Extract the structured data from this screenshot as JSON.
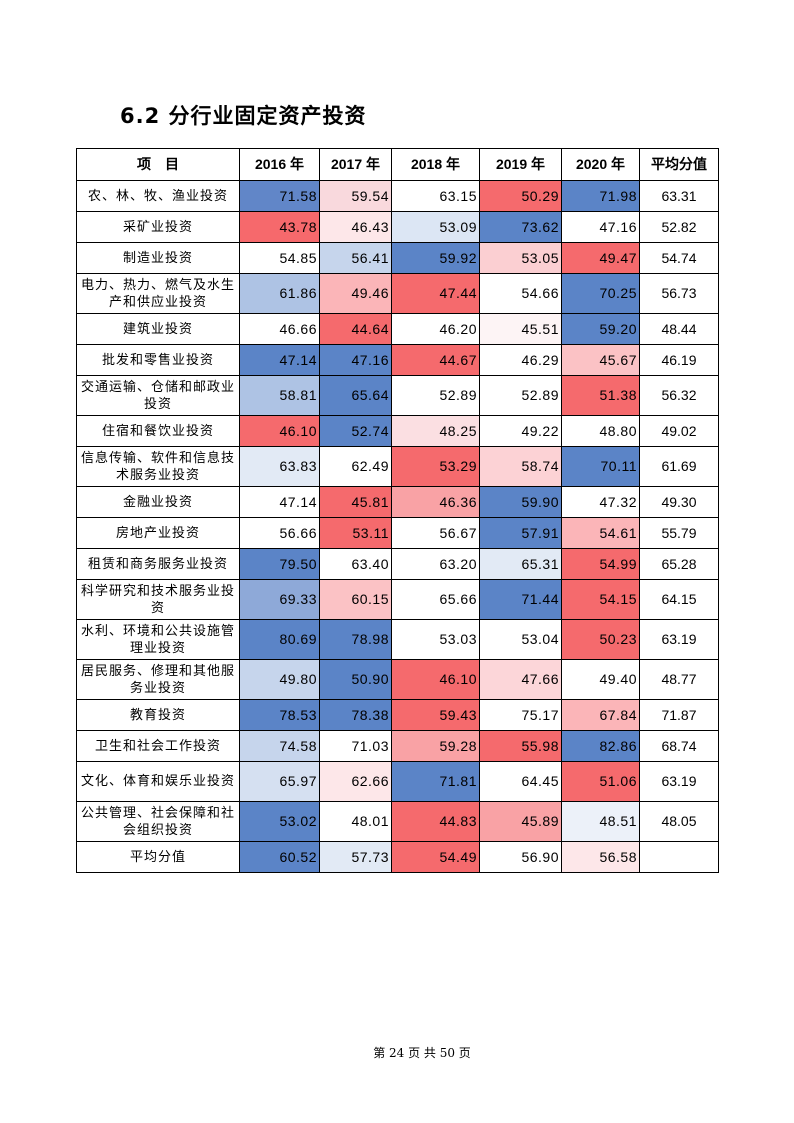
{
  "section_title": "6.2 分行业固定资产投资",
  "table": {
    "headers": [
      "项　目",
      "2016 年",
      "2017 年",
      "2018 年",
      "2019 年",
      "2020 年",
      "平均分值"
    ],
    "rows": [
      {
        "name": "农、林、牧、渔业投资",
        "values": [
          "71.58",
          "59.54",
          "63.15",
          "50.29",
          "71.98"
        ],
        "colors": [
          "#6186c8",
          "#f9d9dd",
          "#ffffff",
          "#f56a6d",
          "#5b84c7"
        ],
        "avg": "63.31"
      },
      {
        "name": "采矿业投资",
        "values": [
          "43.78",
          "46.43",
          "53.09",
          "73.62",
          "47.16"
        ],
        "colors": [
          "#f6696c",
          "#fde7e9",
          "#dce6f4",
          "#5b84c7",
          "#ffffff"
        ],
        "avg": "52.82"
      },
      {
        "name": "制造业投资",
        "values": [
          "54.85",
          "56.41",
          "59.92",
          "53.05",
          "49.47"
        ],
        "colors": [
          "#ffffff",
          "#c6d5ec",
          "#5b84c7",
          "#fbcfd2",
          "#f56a6d"
        ],
        "avg": "54.74"
      },
      {
        "name": "电力、热力、燃气及水生产和供应业投资",
        "values": [
          "61.86",
          "49.46",
          "47.44",
          "54.66",
          "70.25"
        ],
        "colors": [
          "#aec3e4",
          "#fbb5b8",
          "#f56a6d",
          "#ffffff",
          "#5b84c7"
        ],
        "avg": "56.73"
      },
      {
        "name": "建筑业投资",
        "values": [
          "46.66",
          "44.64",
          "46.20",
          "45.51",
          "59.20"
        ],
        "colors": [
          "#ffffff",
          "#f56a6d",
          "#ffffff",
          "#fdf4f5",
          "#5b84c7"
        ],
        "avg": "48.44"
      },
      {
        "name": "批发和零售业投资",
        "values": [
          "47.14",
          "47.16",
          "44.67",
          "46.29",
          "45.67"
        ],
        "colors": [
          "#5b84c7",
          "#5b84c7",
          "#f56a6d",
          "#ffffff",
          "#fbc2c5"
        ],
        "avg": "46.19"
      },
      {
        "name": "交通运输、仓储和邮政业投资",
        "values": [
          "58.81",
          "65.64",
          "52.89",
          "52.89",
          "51.38"
        ],
        "colors": [
          "#aec3e4",
          "#5b84c7",
          "#ffffff",
          "#ffffff",
          "#f56a6d"
        ],
        "avg": "56.32"
      },
      {
        "name": "住宿和餐饮业投资",
        "values": [
          "46.10",
          "52.74",
          "48.25",
          "49.22",
          "48.80"
        ],
        "colors": [
          "#f56a6d",
          "#5b84c7",
          "#fbdfe2",
          "#ffffff",
          "#ffffff"
        ],
        "avg": "49.02"
      },
      {
        "name": "信息传输、软件和信息技术服务业投资",
        "values": [
          "63.83",
          "62.49",
          "53.29",
          "58.74",
          "70.11"
        ],
        "colors": [
          "#e2eaf5",
          "#ffffff",
          "#f56a6d",
          "#fcd2d5",
          "#5b84c7"
        ],
        "avg": "61.69"
      },
      {
        "name": "金融业投资",
        "values": [
          "47.14",
          "45.81",
          "46.36",
          "59.90",
          "47.32"
        ],
        "colors": [
          "#ffffff",
          "#f56a6d",
          "#f9a2a5",
          "#5b84c7",
          "#ffffff"
        ],
        "avg": "49.30"
      },
      {
        "name": "房地产业投资",
        "values": [
          "56.66",
          "53.11",
          "56.67",
          "57.91",
          "54.61"
        ],
        "colors": [
          "#ffffff",
          "#f56a6d",
          "#ffffff",
          "#5b84c7",
          "#fbb5b8"
        ],
        "avg": "55.79"
      },
      {
        "name": "租赁和商务服务业投资",
        "values": [
          "79.50",
          "63.40",
          "63.20",
          "65.31",
          "54.99"
        ],
        "colors": [
          "#5b84c7",
          "#ffffff",
          "#ffffff",
          "#e2eaf5",
          "#f56a6d"
        ],
        "avg": "65.28"
      },
      {
        "name": "科学研究和技术服务业投资",
        "values": [
          "69.33",
          "60.15",
          "65.66",
          "71.44",
          "54.15"
        ],
        "colors": [
          "#8ea9d8",
          "#fbc2c5",
          "#ffffff",
          "#5b84c7",
          "#f56a6d"
        ],
        "avg": "64.15"
      },
      {
        "name": "水利、环境和公共设施管理业投资",
        "values": [
          "80.69",
          "78.98",
          "53.03",
          "53.04",
          "50.23"
        ],
        "colors": [
          "#5b84c7",
          "#5b84c7",
          "#ffffff",
          "#ffffff",
          "#f56a6d"
        ],
        "avg": "63.19"
      },
      {
        "name": "居民服务、修理和其他服务业投资",
        "values": [
          "49.80",
          "50.90",
          "46.10",
          "47.66",
          "49.40"
        ],
        "colors": [
          "#c6d5ec",
          "#5b84c7",
          "#f56a6d",
          "#fcd6d9",
          "#ffffff"
        ],
        "avg": "48.77"
      },
      {
        "name": "教育投资",
        "values": [
          "78.53",
          "78.38",
          "59.43",
          "75.17",
          "67.84"
        ],
        "colors": [
          "#5b84c7",
          "#5b84c7",
          "#f56a6d",
          "#ffffff",
          "#fbb5b8"
        ],
        "avg": "71.87"
      },
      {
        "name": "卫生和社会工作投资",
        "values": [
          "74.58",
          "71.03",
          "59.28",
          "55.98",
          "82.86"
        ],
        "colors": [
          "#c6d5ec",
          "#ffffff",
          "#f9a2a5",
          "#f56a6d",
          "#5b84c7"
        ],
        "avg": "68.74"
      },
      {
        "name": "文化、体育和娱乐业投资",
        "values": [
          "65.97",
          "62.66",
          "71.81",
          "64.45",
          "51.06"
        ],
        "colors": [
          "#d5e0f1",
          "#fde7e9",
          "#5b84c7",
          "#ffffff",
          "#f56a6d"
        ],
        "avg": "63.19"
      },
      {
        "name": "公共管理、社会保障和社会组织投资",
        "values": [
          "53.02",
          "48.01",
          "44.83",
          "45.89",
          "48.51"
        ],
        "colors": [
          "#5b84c7",
          "#ffffff",
          "#f56a6d",
          "#f9a2a5",
          "#ecf1f9"
        ],
        "avg": "48.05"
      },
      {
        "name": "平均分值",
        "values": [
          "60.52",
          "57.73",
          "54.49",
          "56.90",
          "56.58"
        ],
        "colors": [
          "#5b84c7",
          "#e2eaf5",
          "#f56a6d",
          "#ffffff",
          "#fde7e9"
        ],
        "avg": ""
      }
    ]
  },
  "footer": {
    "page_text": "第 24 页 共 50 页"
  }
}
